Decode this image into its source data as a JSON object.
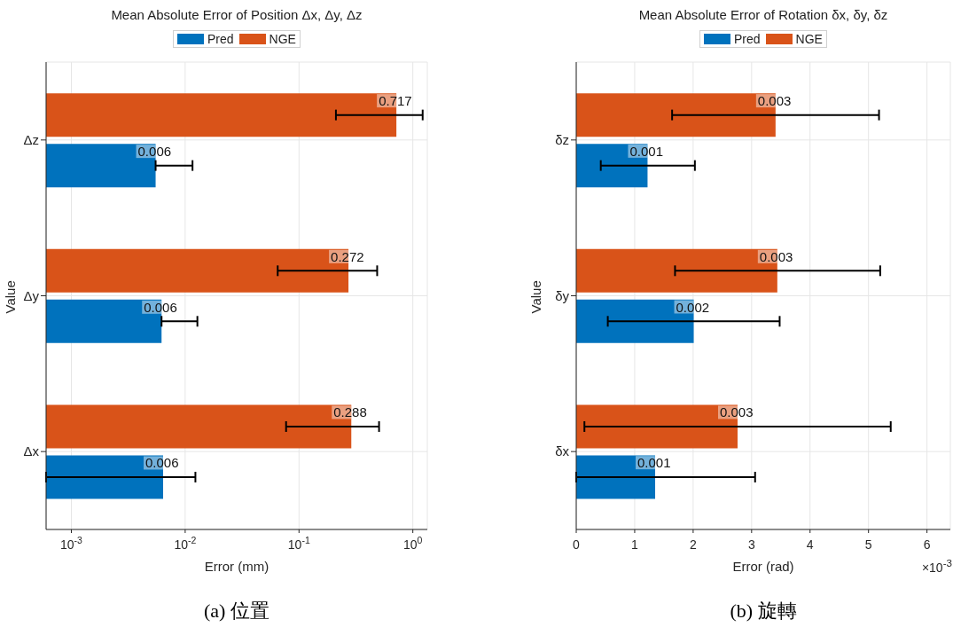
{
  "chart_data": [
    {
      "type": "bar",
      "orientation": "horizontal",
      "title": "Mean Absolute Error of Position Δx, Δy, Δz",
      "xlabel": "Error (mm)",
      "ylabel": "Value",
      "categories": [
        "Δz",
        "Δy",
        "Δx"
      ],
      "log": "x",
      "xlim": [
        0.0006,
        1.34
      ],
      "xticks": [
        {
          "value": 0.001,
          "label": "10$^{-3}$"
        },
        {
          "value": 0.01,
          "label": "10$^{-2}$"
        },
        {
          "value": 0.1,
          "label": "10$^{-1}$"
        },
        {
          "value": 1,
          "label": "10$^{0}$"
        }
      ],
      "grid": true,
      "legend": "top",
      "series": [
        {
          "name": "Pred",
          "color": "#0072bd",
          "values": [
            0.0055,
            0.0062,
            0.0064
          ],
          "errors": [
            [
              0.0055,
              0.0116
            ],
            [
              0.0062,
              0.0128
            ],
            [
              0.0006,
              0.0123
            ]
          ],
          "value_labels": [
            "0.006",
            "0.006",
            "0.006"
          ]
        },
        {
          "name": "NGE",
          "color": "#d95319",
          "values": [
            0.717,
            0.272,
            0.288
          ],
          "errors": [
            [
              0.211,
              1.22
            ],
            [
              0.065,
              0.486
            ],
            [
              0.077,
              0.505
            ]
          ],
          "value_labels": [
            "0.717",
            "0.272",
            "0.288"
          ]
        }
      ],
      "annotations": [
        "(a) 位置"
      ]
    },
    {
      "type": "bar",
      "orientation": "horizontal",
      "title": "Mean Absolute Error of Rotation δx, δy, δz",
      "xlabel": "Error (rad)",
      "ylabel": "Value",
      "categories": [
        "δz",
        "δy",
        "δx"
      ],
      "xlim": [
        0,
        6.4
      ],
      "xticks": [
        0,
        1,
        2,
        3,
        4,
        5,
        6
      ],
      "grid": true,
      "legend": "top",
      "series": [
        {
          "name": "Pred",
          "color": "#0072bd",
          "values": [
            1.22,
            2.01,
            1.35
          ],
          "errors": [
            [
              0.42,
              2.03
            ],
            [
              0.54,
              3.48
            ],
            [
              0,
              3.06
            ]
          ]
        },
        {
          "name": "NGE",
          "color": "#d95319",
          "values": [
            3.41,
            3.44,
            2.76
          ],
          "errors": [
            [
              1.64,
              5.18
            ],
            [
              1.69,
              5.2
            ],
            [
              0.14,
              5.38
            ]
          ]
        }
      ],
      "annotations": [
        {
          "text": "0.003",
          "x": 3.41,
          "y": "δz"
        },
        {
          "text": "0.001",
          "x": 1.22,
          "y": "δz"
        },
        {
          "text": "0.003",
          "x": 3.44,
          "y": "δy"
        },
        {
          "text": "0.002",
          "x": 2.01,
          "y": "δy"
        },
        {
          "text": "0.003",
          "x": 2.76,
          "y": "δx"
        },
        {
          "text": "0.001",
          "x": 1.35,
          "y": "δx"
        },
        "×10$^{-3}$",
        "(b) 旋轉"
      ]
    }
  ]
}
